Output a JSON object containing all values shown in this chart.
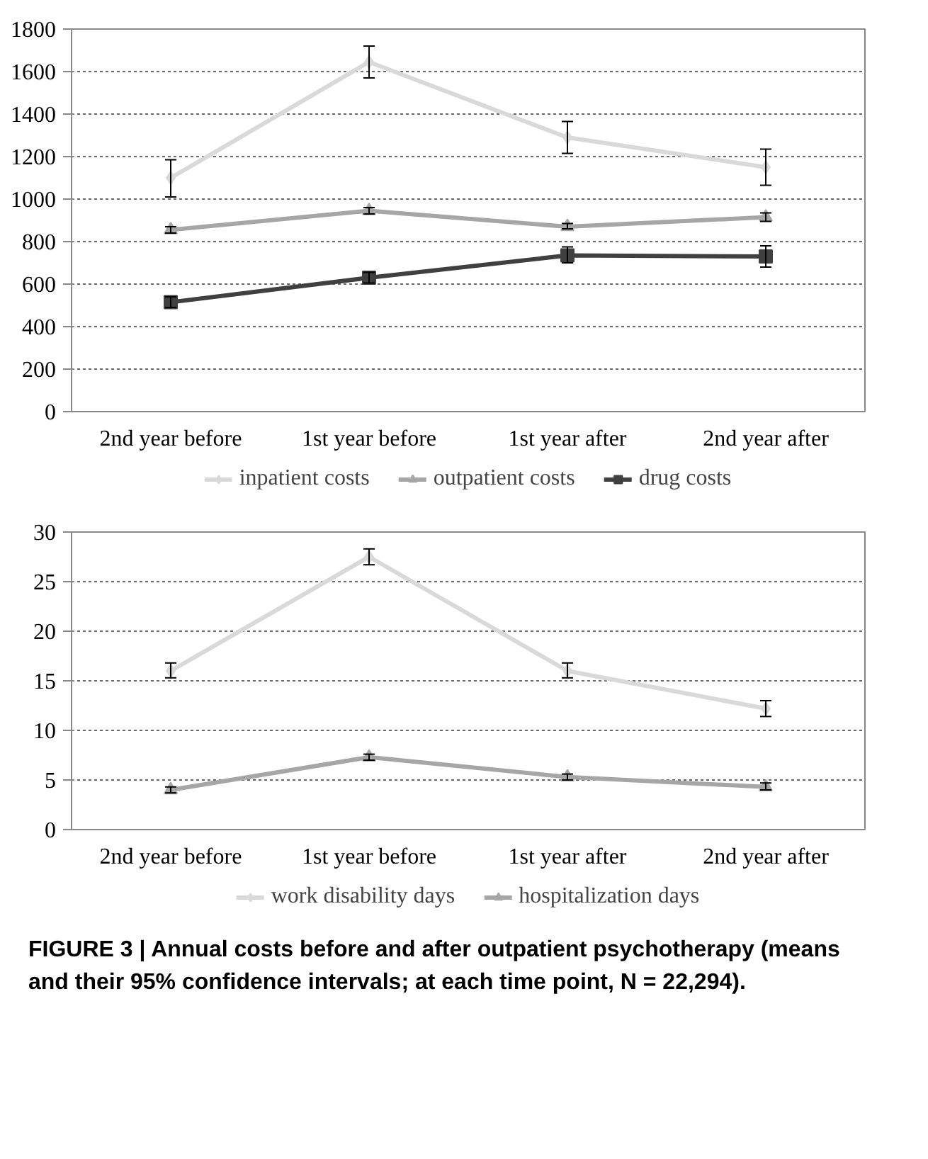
{
  "chart_data": [
    {
      "type": "line",
      "categories": [
        "2nd year before",
        "1st year before",
        "1st year after",
        "2nd year after"
      ],
      "ylim": [
        0,
        1800
      ],
      "yticks": [
        0,
        200,
        400,
        600,
        800,
        1000,
        1200,
        1400,
        1600,
        1800
      ],
      "grid": "y",
      "legend": "bottom",
      "line_style": "solid",
      "series": [
        {
          "name": "inpatient costs",
          "color": "#d9d9d9",
          "marker": "diamond",
          "values": [
            1100,
            1645,
            1290,
            1150
          ],
          "errors": [
            [
              1010,
              1185
            ],
            [
              1570,
              1720
            ],
            [
              1215,
              1365
            ],
            [
              1065,
              1235
            ]
          ]
        },
        {
          "name": "outpatient costs",
          "color": "#a6a6a6",
          "marker": "triangle",
          "values": [
            855,
            945,
            870,
            915
          ],
          "errors": [
            [
              840,
              870
            ],
            [
              930,
              960
            ],
            [
              860,
              885
            ],
            [
              895,
              935
            ]
          ]
        },
        {
          "name": "drug costs",
          "color": "#404040",
          "marker": "square",
          "values": [
            515,
            630,
            735,
            730
          ],
          "errors": [
            [
              490,
              540
            ],
            [
              605,
              655
            ],
            [
              700,
              775
            ],
            [
              680,
              780
            ]
          ]
        }
      ]
    },
    {
      "type": "line",
      "categories": [
        "2nd year before",
        "1st year before",
        "1st year after",
        "2nd year after"
      ],
      "ylim": [
        0,
        30
      ],
      "yticks": [
        0,
        5,
        10,
        15,
        20,
        25,
        30
      ],
      "grid": "y",
      "legend": "bottom",
      "line_style": "solid",
      "annotations": [
        "FIGURE 3 | Annual costs before and after outpatient psychotherapy (means and their 95% confidence intervals; at each time point, N = 22,294)."
      ],
      "series": [
        {
          "name": "work disability days",
          "color": "#d9d9d9",
          "marker": "diamond",
          "values": [
            16.0,
            27.5,
            16.0,
            12.2
          ],
          "errors": [
            [
              15.3,
              16.8
            ],
            [
              26.7,
              28.3
            ],
            [
              15.3,
              16.8
            ],
            [
              11.4,
              13.0
            ]
          ]
        },
        {
          "name": "hospitalization days",
          "color": "#a6a6a6",
          "marker": "triangle",
          "values": [
            4.0,
            7.3,
            5.3,
            4.3
          ],
          "errors": [
            [
              3.7,
              4.3
            ],
            [
              7.0,
              7.6
            ],
            [
              5.0,
              5.6
            ],
            [
              4.0,
              4.7
            ]
          ]
        }
      ]
    }
  ]
}
